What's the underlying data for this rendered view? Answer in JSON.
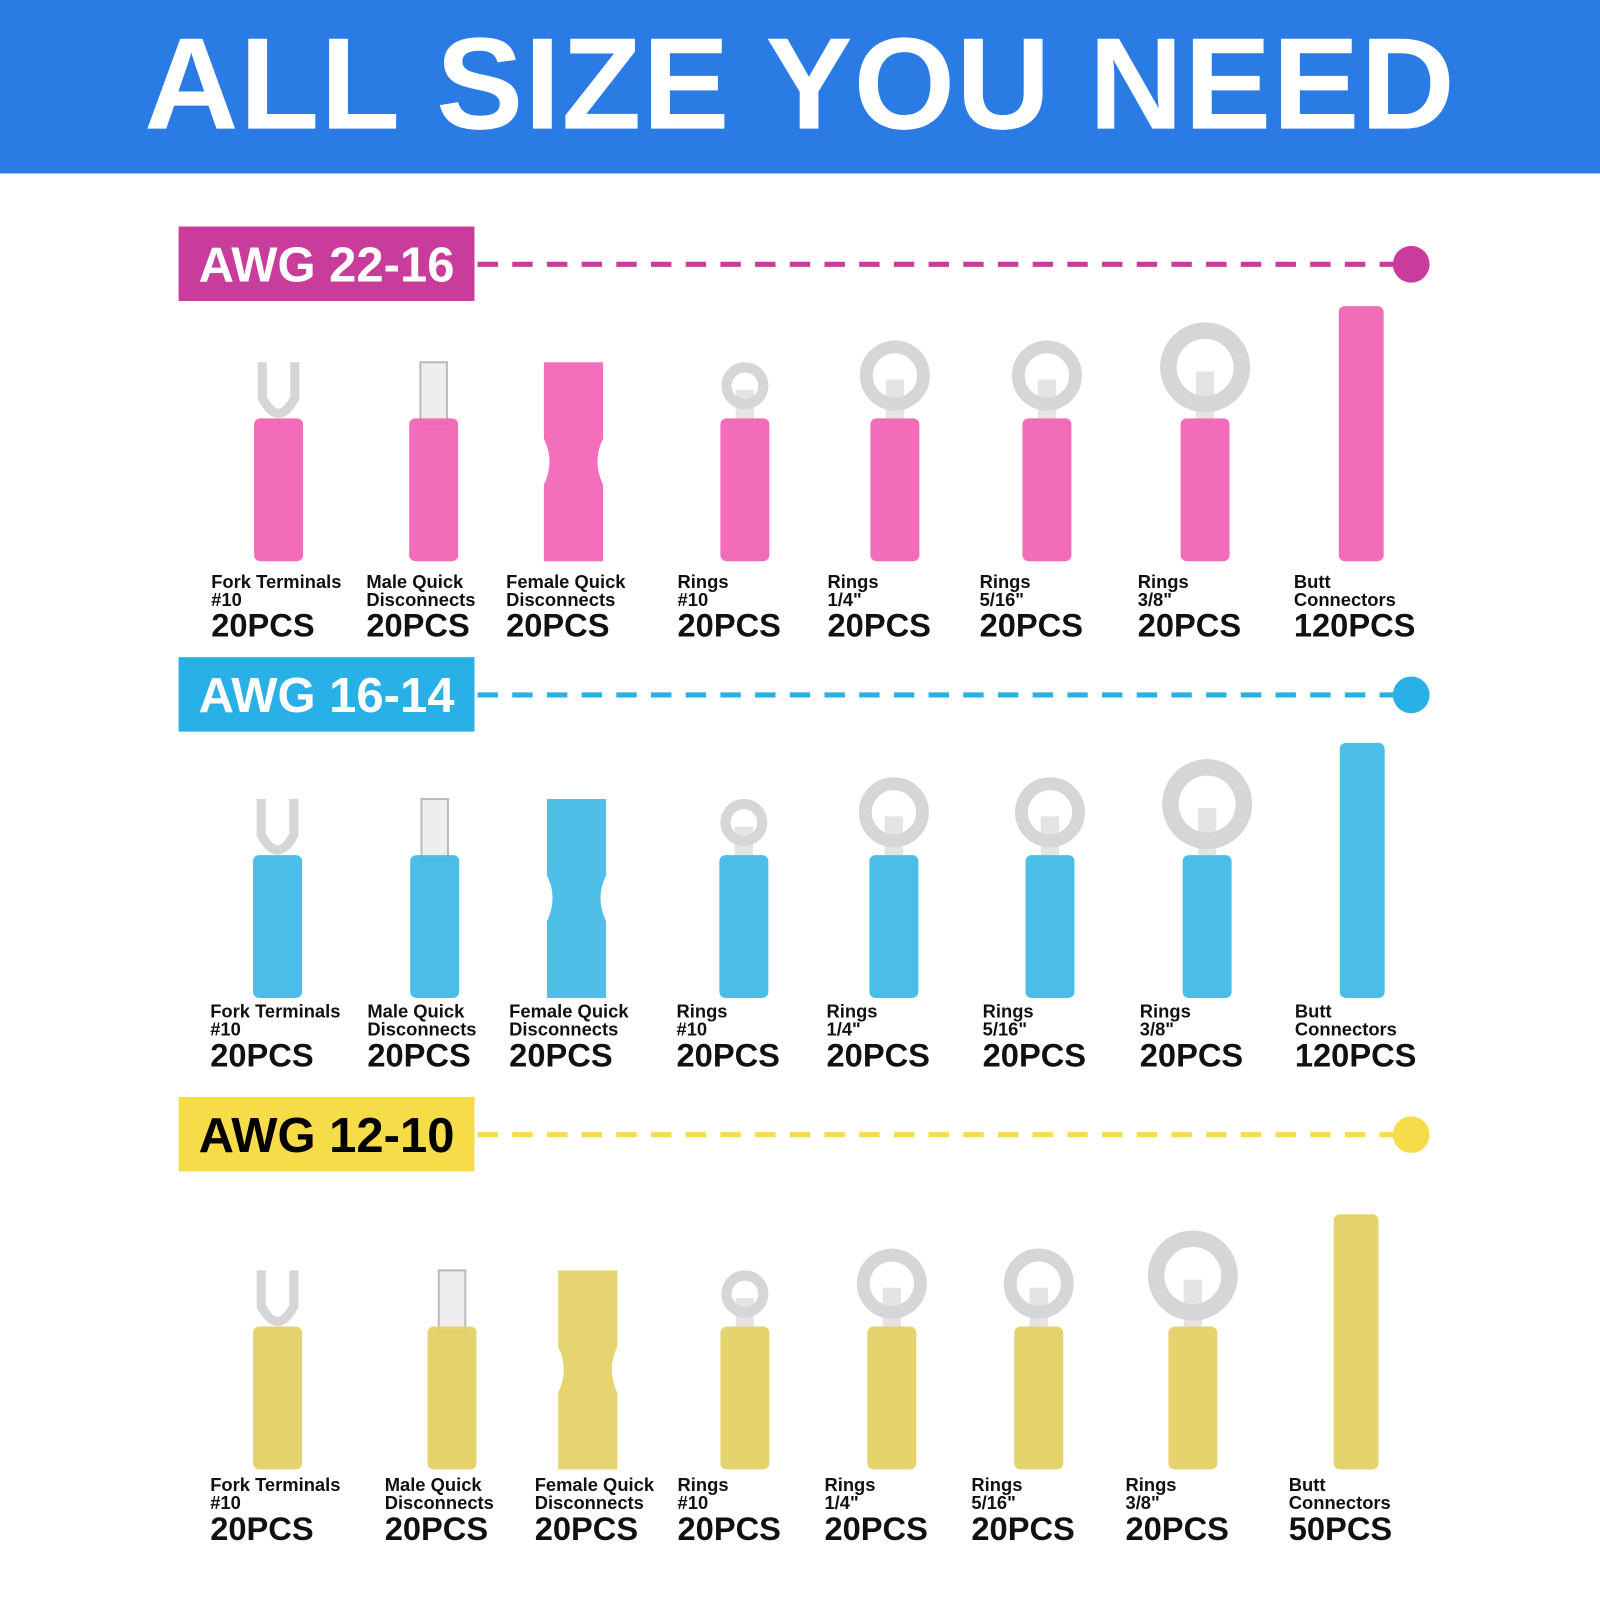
{
  "header": {
    "title": "ALL SIZE YOU NEED",
    "color": "#2b7be4"
  },
  "sections": [
    {
      "label": "AWG 22-16",
      "color": "#c93c9c",
      "text_color": "#ffffff",
      "tube_color": "#f25fb4",
      "items": [
        {
          "name": [
            "Fork Terminals",
            "#10"
          ],
          "count": "20PCS"
        },
        {
          "name": [
            "Male Quick",
            "Disconnects"
          ],
          "count": "20PCS"
        },
        {
          "name": [
            "Female Quick",
            "Disconnects"
          ],
          "count": "20PCS"
        },
        {
          "name": [
            "Rings",
            "#10"
          ],
          "count": "20PCS"
        },
        {
          "name": [
            "Rings",
            "1/4\""
          ],
          "count": "20PCS"
        },
        {
          "name": [
            "Rings",
            "5/16\""
          ],
          "count": "20PCS"
        },
        {
          "name": [
            "Rings",
            "3/8\""
          ],
          "count": "20PCS"
        },
        {
          "name": [
            "Butt",
            "Connectors"
          ],
          "count": "120PCS"
        }
      ]
    },
    {
      "label": "AWG 16-14",
      "color": "#29b0e6",
      "text_color": "#ffffff",
      "tube_color": "#3cb8e6",
      "items": [
        {
          "name": [
            "Fork Terminals",
            "#10"
          ],
          "count": "20PCS"
        },
        {
          "name": [
            "Male Quick",
            "Disconnects"
          ],
          "count": "20PCS"
        },
        {
          "name": [
            "Female Quick",
            "Disconnects"
          ],
          "count": "20PCS"
        },
        {
          "name": [
            "Rings",
            "#10"
          ],
          "count": "20PCS"
        },
        {
          "name": [
            "Rings",
            "1/4\""
          ],
          "count": "20PCS"
        },
        {
          "name": [
            "Rings",
            "5/16\""
          ],
          "count": "20PCS"
        },
        {
          "name": [
            "Rings",
            "3/8\""
          ],
          "count": "20PCS"
        },
        {
          "name": [
            "Butt",
            "Connectors"
          ],
          "count": "120PCS"
        }
      ]
    },
    {
      "label": "AWG 12-10",
      "color": "#f7dc4a",
      "text_color": "#000000",
      "tube_color": "#e3cf62",
      "items": [
        {
          "name": [
            "Fork Terminals",
            "#10"
          ],
          "count": "20PCS"
        },
        {
          "name": [
            "Male Quick",
            "Disconnects"
          ],
          "count": "20PCS"
        },
        {
          "name": [
            "Female Quick",
            "Disconnects"
          ],
          "count": "20PCS"
        },
        {
          "name": [
            "Rings",
            "#10"
          ],
          "count": "20PCS"
        },
        {
          "name": [
            "Rings",
            "1/4\""
          ],
          "count": "20PCS"
        },
        {
          "name": [
            "Rings",
            "5/16\""
          ],
          "count": "20PCS"
        },
        {
          "name": [
            "Rings",
            "3/8\""
          ],
          "count": "20PCS"
        },
        {
          "name": [
            "Butt",
            "Connectors"
          ],
          "count": "50PCS"
        }
      ]
    }
  ]
}
